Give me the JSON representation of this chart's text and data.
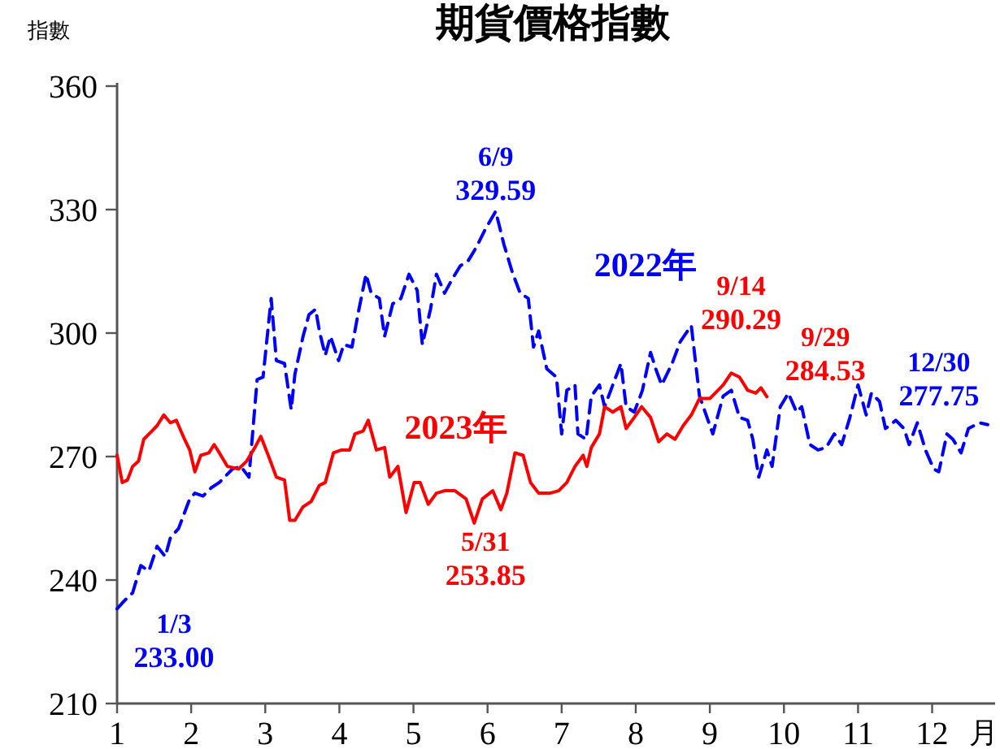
{
  "chart_data": {
    "type": "line",
    "title": "期貨價格指數",
    "ylabel": "指數",
    "xlabel": "月",
    "xlim": [
      1,
      12.85
    ],
    "xticks": [
      1,
      2,
      3,
      4,
      5,
      6,
      7,
      8,
      9,
      10,
      11,
      12
    ],
    "ylim": [
      210,
      360
    ],
    "yticks": [
      210,
      240,
      270,
      300,
      330,
      360
    ],
    "grid": false,
    "marker": "none",
    "series": [
      {
        "name": "2022年",
        "color": "#0000ff",
        "line_style": "dashed",
        "x": [
          1.0,
          1.1,
          1.21,
          1.32,
          1.43,
          1.54,
          1.65,
          1.72,
          1.83,
          1.98,
          2.05,
          2.16,
          2.27,
          2.38,
          2.45,
          2.56,
          2.67,
          2.78,
          2.89,
          2.97,
          3.08,
          3.15,
          3.26,
          3.35,
          3.4,
          3.51,
          3.59,
          3.68,
          3.73,
          3.81,
          3.88,
          3.99,
          4.06,
          4.17,
          4.25,
          4.36,
          4.43,
          4.54,
          4.61,
          4.72,
          4.83,
          4.94,
          5.05,
          5.12,
          5.23,
          5.31,
          5.42,
          5.52,
          5.63,
          5.74,
          5.85,
          5.96,
          6.11,
          6.22,
          6.33,
          6.44,
          6.55,
          6.62,
          6.69,
          6.8,
          6.93,
          7.0,
          7.07,
          7.18,
          7.22,
          7.33,
          7.4,
          7.51,
          7.58,
          7.69,
          7.8,
          7.87,
          7.98,
          8.09,
          8.2,
          8.27,
          8.35,
          8.49,
          8.6,
          8.75,
          8.86,
          9.04,
          9.18,
          9.29,
          9.4,
          9.51,
          9.58,
          9.66,
          9.77,
          9.84,
          9.95,
          10.06,
          10.17,
          10.24,
          10.35,
          10.46,
          10.57,
          10.68,
          10.78,
          10.89,
          11.0,
          11.11,
          11.18,
          11.29,
          11.37,
          11.51,
          11.62,
          11.69,
          11.8,
          11.91,
          12.02,
          12.09,
          12.2,
          12.28,
          12.39,
          12.49,
          12.64,
          12.75
        ],
        "values": [
          233.0,
          235.0,
          236.9,
          243.5,
          242.2,
          248.2,
          245.7,
          250.3,
          252.5,
          259.7,
          261.1,
          260.4,
          262.4,
          263.7,
          265.0,
          267.0,
          267.6,
          265.0,
          288.7,
          289.3,
          308.4,
          293.3,
          292.6,
          281.4,
          290.0,
          299.2,
          304.5,
          305.8,
          300.5,
          294.6,
          299.2,
          293.3,
          297.2,
          296.6,
          304.5,
          314.3,
          309.7,
          308.4,
          299.2,
          307.1,
          308.4,
          314.3,
          310.4,
          297.2,
          305.8,
          314.3,
          309.7,
          313.0,
          316.3,
          317.6,
          320.9,
          324.9,
          329.59,
          321.6,
          315.0,
          309.7,
          308.4,
          296.6,
          300.5,
          291.3,
          289.3,
          275.5,
          286.1,
          287.4,
          275.5,
          274.2,
          284.7,
          287.4,
          282.1,
          287.4,
          292.6,
          282.1,
          280.8,
          286.1,
          295.3,
          291.3,
          287.4,
          292.6,
          297.9,
          301.8,
          284.7,
          275.5,
          284.7,
          286.1,
          279.5,
          278.8,
          274.2,
          265.0,
          271.6,
          267.6,
          282.1,
          285.4,
          280.8,
          282.1,
          272.9,
          271.6,
          272.2,
          275.5,
          272.9,
          279.5,
          287.4,
          280.1,
          285.4,
          283.4,
          276.8,
          278.8,
          276.8,
          272.9,
          278.2,
          271.6,
          267.0,
          266.3,
          275.5,
          274.2,
          270.9,
          276.8,
          278.2,
          277.75
        ],
        "value_labels": [
          "233.00",
          null,
          null,
          null,
          null,
          null,
          null,
          null,
          null,
          null,
          null,
          null,
          null,
          null,
          null,
          null,
          null,
          null,
          null,
          null,
          null,
          null,
          null,
          null,
          null,
          null,
          null,
          null,
          null,
          null,
          null,
          null,
          null,
          null,
          null,
          null,
          null,
          null,
          null,
          null,
          null,
          null,
          null,
          null,
          null,
          null,
          null,
          null,
          null,
          null,
          null,
          null,
          "329.59",
          null,
          null,
          null,
          null,
          null,
          null,
          null,
          null,
          null,
          null,
          null,
          null,
          null,
          null,
          null,
          null,
          null,
          null,
          null,
          null,
          null,
          null,
          null,
          null,
          null,
          null,
          null,
          null,
          null,
          null,
          null,
          null,
          null,
          null,
          null,
          null,
          null,
          null,
          null,
          null,
          null,
          null,
          null,
          null,
          null,
          null,
          null,
          null,
          null,
          null,
          null,
          null,
          null,
          null,
          null,
          null,
          null,
          null,
          null,
          null,
          null,
          null,
          null,
          null,
          "277.75"
        ]
      },
      {
        "name": "2023年",
        "color": "#ff0000",
        "line_style": "solid",
        "x": [
          1.0,
          1.07,
          1.14,
          1.21,
          1.29,
          1.36,
          1.47,
          1.54,
          1.63,
          1.72,
          1.8,
          1.91,
          1.98,
          2.05,
          2.13,
          2.24,
          2.31,
          2.38,
          2.49,
          2.64,
          2.75,
          2.86,
          2.94,
          3.04,
          3.15,
          3.26,
          3.33,
          3.4,
          3.51,
          3.62,
          3.73,
          3.81,
          3.92,
          4.03,
          4.14,
          4.21,
          4.32,
          4.39,
          4.5,
          4.61,
          4.68,
          4.79,
          4.9,
          5.01,
          5.09,
          5.2,
          5.31,
          5.42,
          5.56,
          5.71,
          5.82,
          5.93,
          6.07,
          6.18,
          6.26,
          6.37,
          6.48,
          6.58,
          6.69,
          6.84,
          6.96,
          7.07,
          7.18,
          7.29,
          7.34,
          7.4,
          7.51,
          7.58,
          7.69,
          7.8,
          7.87,
          7.98,
          8.08,
          8.2,
          8.31,
          8.42,
          8.53,
          8.64,
          8.75,
          8.86,
          9.0,
          9.18,
          9.29,
          9.4,
          9.51,
          9.62,
          9.69,
          9.77
        ],
        "values": [
          270.3,
          263.7,
          264.3,
          267.6,
          268.9,
          274.2,
          276.2,
          277.5,
          280.1,
          278.2,
          278.8,
          274.2,
          271.6,
          266.3,
          270.3,
          270.9,
          272.9,
          270.9,
          267.6,
          267.0,
          268.9,
          272.2,
          274.9,
          270.3,
          265.0,
          264.3,
          254.5,
          254.5,
          257.8,
          259.1,
          263.0,
          263.7,
          270.9,
          271.6,
          271.6,
          275.5,
          276.2,
          278.8,
          271.6,
          272.2,
          265.0,
          267.6,
          256.4,
          263.7,
          263.7,
          258.4,
          261.1,
          261.7,
          261.7,
          259.7,
          253.85,
          259.7,
          261.7,
          257.1,
          261.1,
          270.9,
          270.3,
          263.7,
          261.1,
          261.1,
          261.7,
          263.7,
          267.6,
          270.3,
          267.6,
          272.2,
          275.5,
          282.1,
          280.8,
          282.1,
          276.8,
          279.5,
          282.1,
          279.5,
          273.6,
          275.5,
          274.2,
          277.5,
          280.1,
          284.1,
          284.1,
          287.4,
          290.29,
          289.3,
          286.1,
          285.4,
          286.7,
          284.53
        ],
        "value_labels": [
          null,
          null,
          null,
          null,
          null,
          null,
          null,
          null,
          null,
          null,
          null,
          null,
          null,
          null,
          null,
          null,
          null,
          null,
          null,
          null,
          null,
          null,
          null,
          null,
          null,
          null,
          null,
          null,
          null,
          null,
          null,
          null,
          null,
          null,
          null,
          null,
          null,
          null,
          null,
          null,
          null,
          null,
          null,
          null,
          null,
          null,
          null,
          null,
          null,
          null,
          "253.85",
          null,
          null,
          null,
          null,
          null,
          null,
          null,
          null,
          null,
          null,
          null,
          null,
          null,
          null,
          null,
          null,
          null,
          null,
          null,
          null,
          null,
          null,
          null,
          null,
          null,
          null,
          null,
          null,
          null,
          null,
          null,
          "290.29",
          null,
          null,
          null,
          null,
          "284.53"
        ]
      }
    ],
    "annotations": [
      {
        "text": "1/3",
        "x": 1.0,
        "y": 233.0
      },
      {
        "text": "6/9",
        "x": 6.11,
        "y": 329.59
      },
      {
        "text": "12/30",
        "x": 12.75,
        "y": 277.75
      },
      {
        "text": "5/31",
        "x": 5.82,
        "y": 253.85
      },
      {
        "text": "9/14",
        "x": 9.29,
        "y": 290.29
      },
      {
        "text": "9/29",
        "x": 9.77,
        "y": 284.53
      }
    ]
  }
}
